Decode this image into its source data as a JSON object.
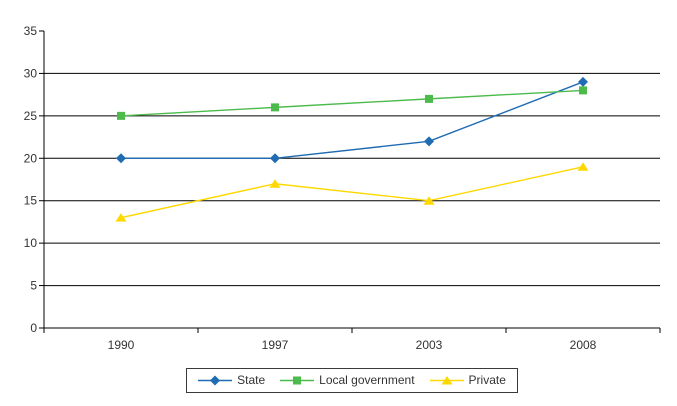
{
  "chart_data": {
    "type": "line",
    "title": "",
    "xlabel": "",
    "ylabel": "",
    "categories": [
      "1990",
      "1997",
      "2003",
      "2008"
    ],
    "series": [
      {
        "name": "State",
        "values": [
          20,
          20,
          22,
          29
        ],
        "color": "#1F6BB4",
        "marker": "diamond"
      },
      {
        "name": "Local government",
        "values": [
          25,
          26,
          27,
          28
        ],
        "color": "#4CBB4C",
        "marker": "square"
      },
      {
        "name": "Private",
        "values": [
          13,
          17,
          15,
          19
        ],
        "color": "#FFD800",
        "marker": "triangle"
      }
    ],
    "ylim": [
      0,
      35
    ],
    "y_tick_step": 5,
    "y_tick_labels": [
      "0",
      "5",
      "10",
      "15",
      "20",
      "25",
      "30",
      "35"
    ],
    "grid": true,
    "legend_position": "bottom"
  },
  "legend": {
    "items": [
      "State",
      "Local government",
      "Private"
    ]
  },
  "colors": {
    "background": "#FFFFFF",
    "axis": "#000000",
    "gridline": "#000000",
    "tick_text": "#333333",
    "legend_border": "#3A3A3A"
  }
}
